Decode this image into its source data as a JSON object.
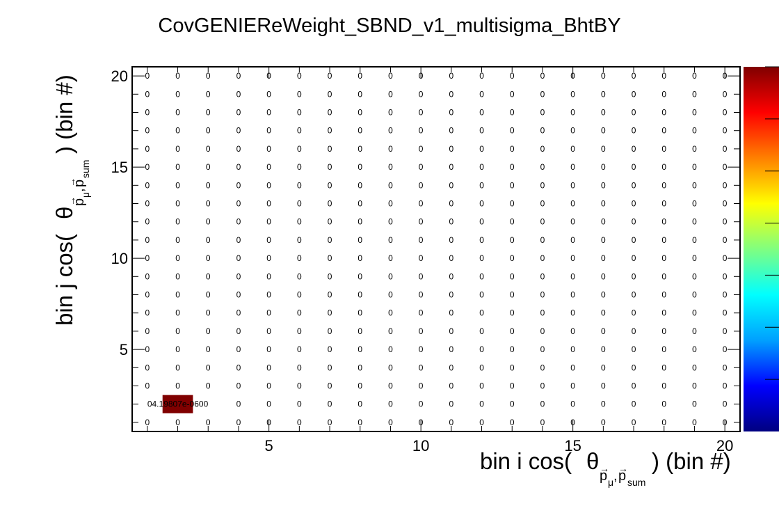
{
  "chart_data": {
    "type": "heatmap",
    "title": "CovGENIEReWeight_SBND_v1_multisigma_BhtBY",
    "xlabel": {
      "prefix": "bin i cos(",
      "theta": "θ",
      "vec1": "p",
      "sub1": "μ",
      "comma": ",",
      "vec2": "p",
      "sub2": "sum",
      "suffix": ") (bin #)"
    },
    "ylabel": {
      "prefix": "bin j cos(",
      "theta": "θ",
      "vec1": "p",
      "sub1": "μ",
      "comma": ",",
      "vec2": "p",
      "sub2": "sum",
      "suffix": ") (bin #)"
    },
    "xlim": [
      1,
      20
    ],
    "ylim": [
      1,
      20
    ],
    "x_ticks": [
      "5",
      "10",
      "15",
      "20"
    ],
    "y_ticks": [
      "5",
      "10",
      "15",
      "20"
    ],
    "x_tick_values": [
      5,
      10,
      15,
      20
    ],
    "y_tick_values": [
      5,
      10,
      15,
      20
    ],
    "nbins": 20,
    "default_cell_label": "0",
    "nonzero_cells": [
      {
        "i": 2,
        "j": 2,
        "value": 4.19807e-60,
        "label": "4.19807e-060",
        "color": "#800000"
      }
    ],
    "colorbar": {
      "colors": [
        "#000080",
        "#0000ff",
        "#00a0ff",
        "#00ffff",
        "#80ff80",
        "#ffff00",
        "#ff8000",
        "#ff0000",
        "#800000"
      ]
    }
  }
}
